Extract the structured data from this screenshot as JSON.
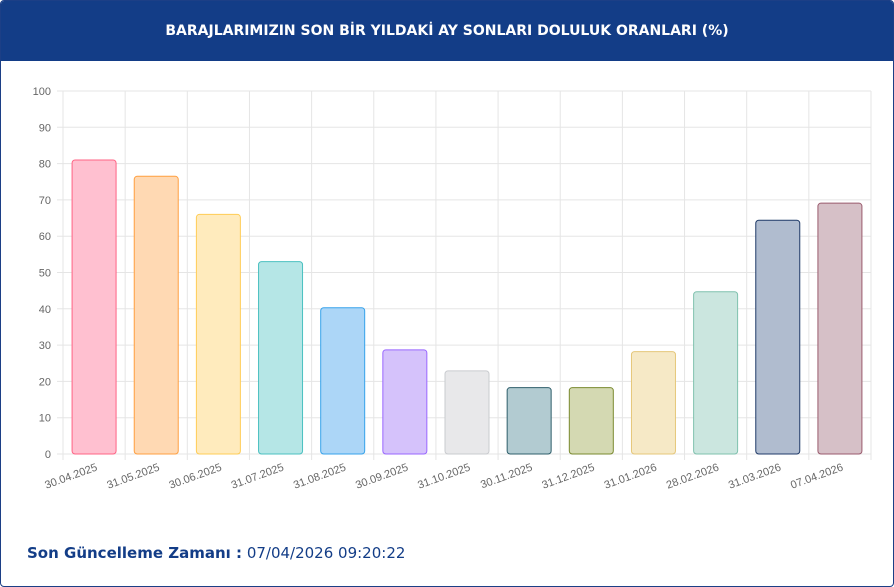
{
  "chart_data": {
    "type": "bar",
    "title": "BARAJLARIMIZIN SON BİR YILDAKİ AY SONLARI DOLULUK ORANLARI (%)",
    "categories": [
      "30.04.2025",
      "31.05.2025",
      "30.06.2025",
      "31.07.2025",
      "31.08.2025",
      "30.09.2025",
      "31.10.2025",
      "30.11.2025",
      "31.12.2025",
      "31.01.2026",
      "28.02.2026",
      "31.03.2026",
      "07.04.2026"
    ],
    "values": [
      81,
      76.5,
      66,
      53,
      40.3,
      28.7,
      22.9,
      18.3,
      18.3,
      28.2,
      44.7,
      64.4,
      69.1
    ],
    "colors": [
      "#ffc0d0",
      "#ffd9b3",
      "#ffebbd",
      "#b5e6e6",
      "#acd6f7",
      "#d5c2fb",
      "#e8e8ea",
      "#b2cbd1",
      "#d4d9b2",
      "#f6e9c6",
      "#cbe6df",
      "#b0bccf",
      "#d6c0c7"
    ],
    "border_colors": [
      "#ff6384",
      "#ff9f40",
      "#ffcd56",
      "#4bc0c0",
      "#36a2eb",
      "#9966ff",
      "#c9cbcf",
      "#2f5f6b",
      "#7a8a2f",
      "#e5c77a",
      "#7fc1ae",
      "#1f3a68",
      "#9a5a6d"
    ],
    "ylim": [
      0,
      100
    ],
    "yticks": [
      0,
      10,
      20,
      30,
      40,
      50,
      60,
      70,
      80,
      90,
      100
    ],
    "grid": true
  },
  "footer": {
    "label": "Son Güncelleme Zamanı :",
    "value": "07/04/2026 09:20:22"
  }
}
